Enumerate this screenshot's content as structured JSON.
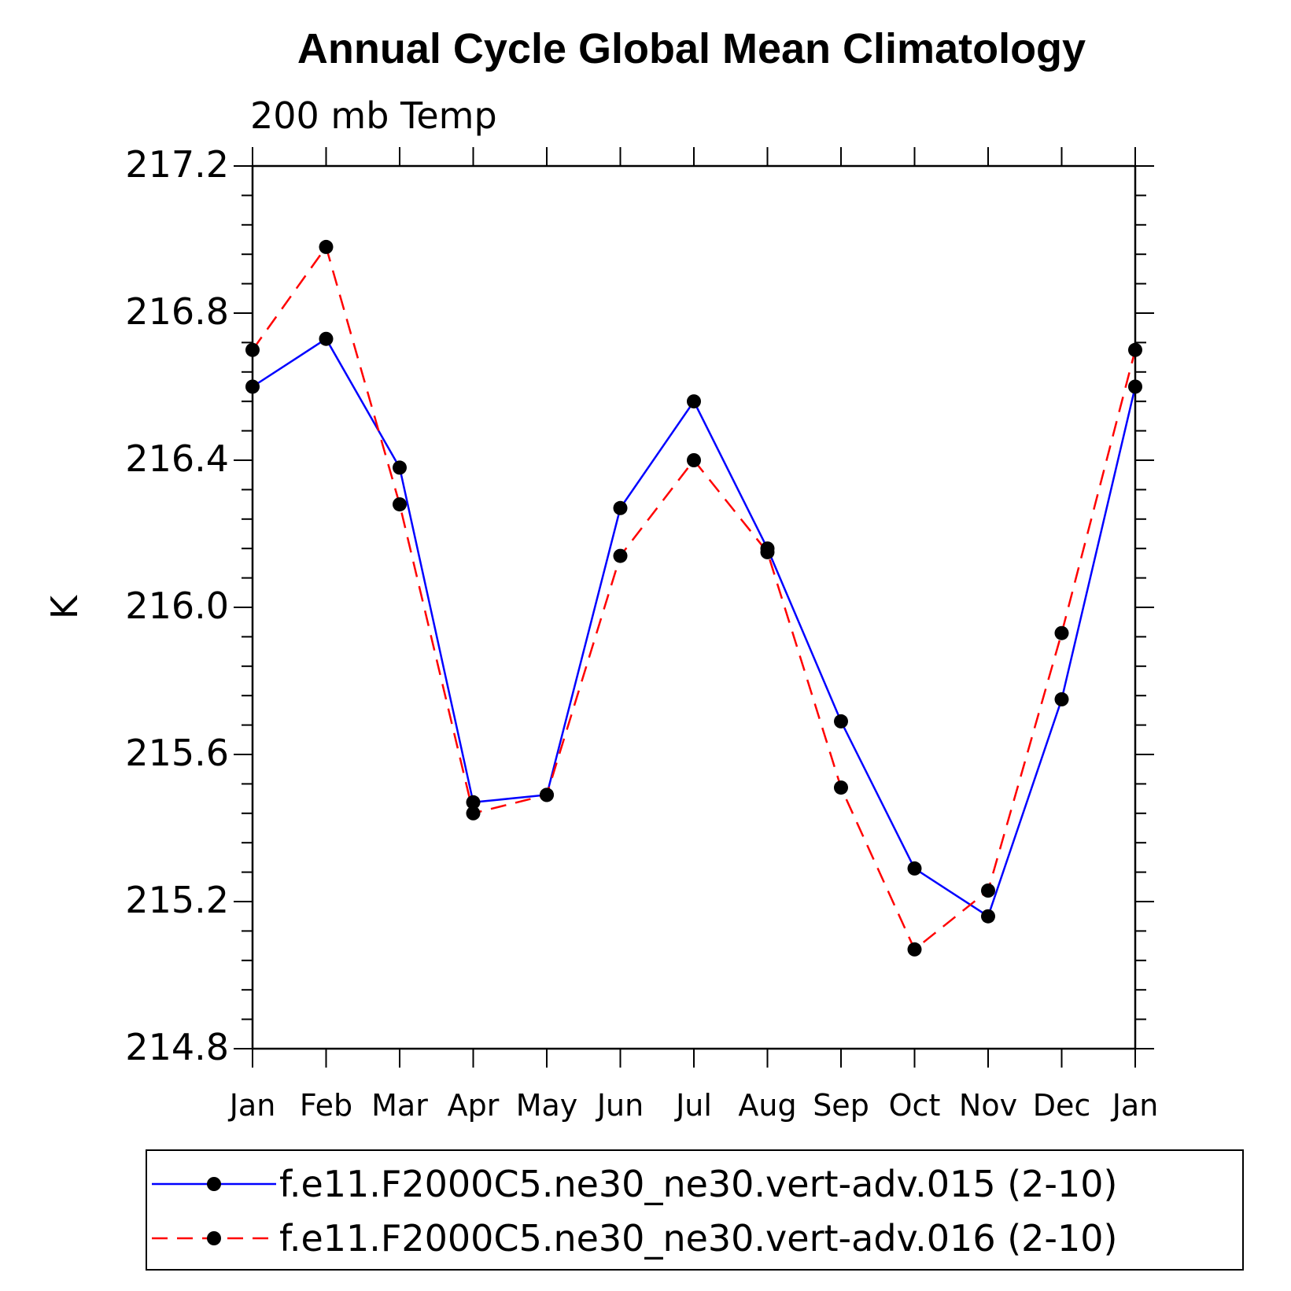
{
  "chart_data": {
    "type": "line",
    "title": "Annual Cycle Global Mean Climatology",
    "subtitle": "200 mb Temp",
    "xlabel": "",
    "ylabel": "K",
    "categories": [
      "Jan",
      "Feb",
      "Mar",
      "Apr",
      "May",
      "Jun",
      "Jul",
      "Aug",
      "Sep",
      "Oct",
      "Nov",
      "Dec",
      "Jan"
    ],
    "ylim": [
      214.8,
      217.2
    ],
    "yticks": [
      214.8,
      215.2,
      215.6,
      216.0,
      216.4,
      216.8,
      217.2
    ],
    "ytick_labels": [
      "214.8",
      "215.2",
      "215.6",
      "216.0",
      "216.4",
      "216.8",
      "217.2"
    ],
    "series": [
      {
        "name": "f.e11.F2000C5.ne30_ne30.vert-adv.015 (2-10)",
        "color": "#0000ff",
        "dash": "solid",
        "values": [
          216.6,
          216.73,
          216.38,
          215.47,
          215.49,
          216.27,
          216.56,
          216.16,
          215.69,
          215.29,
          215.16,
          215.75,
          216.6
        ]
      },
      {
        "name": "f.e11.F2000C5.ne30_ne30.vert-adv.016 (2-10)",
        "color": "#ff0000",
        "dash": "dashed",
        "values": [
          216.7,
          216.98,
          216.28,
          215.44,
          215.49,
          216.14,
          216.4,
          216.15,
          215.51,
          215.07,
          215.23,
          215.93,
          216.7
        ]
      }
    ],
    "legend_position": "bottom"
  }
}
